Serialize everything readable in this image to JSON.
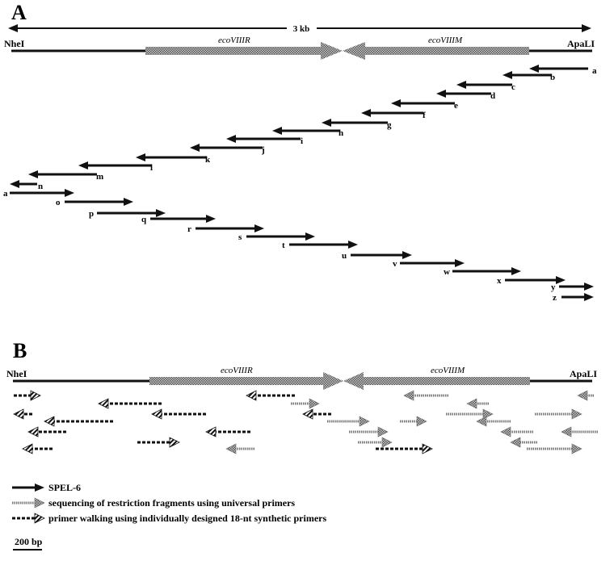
{
  "panel_a": {
    "label": "A",
    "scale_text": "3 kb",
    "site_left": "NheI",
    "site_right": "ApaLI",
    "gene_r": "ecoVIIIR",
    "gene_m": "ecoVIIIM",
    "arrow_labels": [
      "a",
      "b",
      "c",
      "d",
      "e",
      "f",
      "g",
      "h",
      "i",
      "j",
      "k",
      "l",
      "m",
      "n",
      "a",
      "o",
      "p",
      "q",
      "r",
      "s",
      "t",
      "u",
      "v",
      "w",
      "x",
      "y",
      "z"
    ]
  },
  "panel_b": {
    "label": "B",
    "site_left": "NheI",
    "site_right": "ApaLI",
    "gene_r": "ecoVIIIR",
    "gene_m": "ecoVIIIM"
  },
  "legend": {
    "spel6": "SPEL-6",
    "universal": "sequencing of restriction fragments using universal primers",
    "walking": "primer walking using individually designed 18-nt synthetic primers",
    "scale_bar": "200 bp"
  },
  "colors": {
    "ink": "#111111",
    "hatch": "#8a8a8a"
  }
}
